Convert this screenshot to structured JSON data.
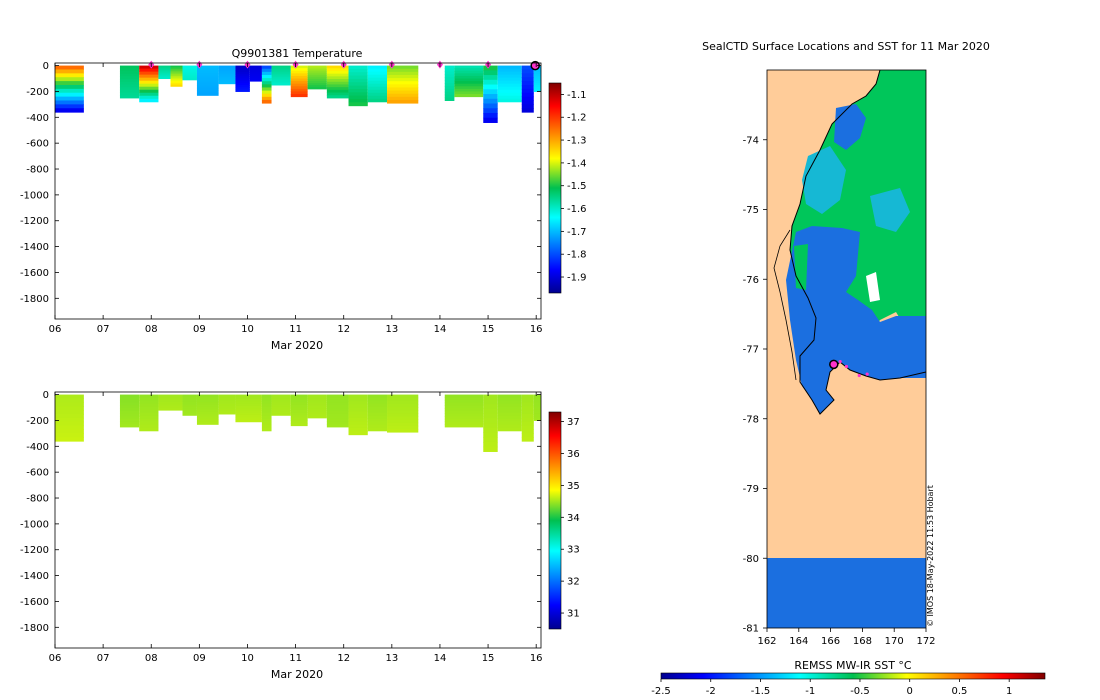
{
  "figure": {
    "background": "#ffffff"
  },
  "chart_data": [
    {
      "type": "heatmap",
      "title": "Q9901381  Temperature",
      "xlabel": "Mar 2020",
      "ylabel": "",
      "x_ticks": [
        6,
        7,
        8,
        9,
        10,
        11,
        12,
        13,
        14,
        15,
        16
      ],
      "x_tick_labels": [
        "06",
        "07",
        "08",
        "09",
        "10",
        "11",
        "12",
        "13",
        "14",
        "15",
        "16"
      ],
      "xlim": [
        6,
        16.1
      ],
      "y_ticks": [
        0,
        -200,
        -400,
        -600,
        -800,
        -1000,
        -1200,
        -1400,
        -1600,
        -1800
      ],
      "y_tick_labels": [
        "0",
        "-200",
        "-400",
        "-600",
        "-800",
        "-1000",
        "-1200",
        "-1400",
        "-1600",
        "-1800"
      ],
      "ylim": [
        -1960,
        20
      ],
      "colorbar": {
        "ticks": [
          -1.1,
          -1.2,
          -1.3,
          -1.4,
          -1.5,
          -1.6,
          -1.7,
          -1.8,
          -1.9
        ],
        "tick_labels": [
          "-1.1",
          "-1.2",
          "-1.3",
          "-1.4",
          "-1.5",
          "-1.6",
          "-1.7",
          "-1.8",
          "-1.9"
        ],
        "range": [
          -1.97,
          -1.05
        ],
        "colormap": "jet"
      },
      "day_markers": [
        8,
        9,
        10,
        11,
        12,
        13,
        14,
        15
      ],
      "current_position": {
        "day": 15.98,
        "depth": 0
      },
      "profiles": [
        {
          "x0": 6.0,
          "x1": 6.6,
          "depth": 360,
          "top": -1.25,
          "bottom": -1.88
        },
        {
          "x0": 7.35,
          "x1": 7.75,
          "depth": 250,
          "top": -1.52,
          "bottom": -1.56
        },
        {
          "x0": 7.75,
          "x1": 8.15,
          "depth": 280,
          "top": -1.12,
          "bottom": -1.65
        },
        {
          "x0": 8.15,
          "x1": 8.4,
          "depth": 100,
          "top": -1.55,
          "bottom": -1.6
        },
        {
          "x0": 8.4,
          "x1": 8.65,
          "depth": 160,
          "top": -1.5,
          "bottom": -1.35
        },
        {
          "x0": 8.65,
          "x1": 8.95,
          "depth": 110,
          "top": -1.62,
          "bottom": -1.6
        },
        {
          "x0": 8.95,
          "x1": 9.4,
          "depth": 230,
          "top": -1.7,
          "bottom": -1.72
        },
        {
          "x0": 9.4,
          "x1": 9.75,
          "depth": 140,
          "top": -1.72,
          "bottom": -1.7
        },
        {
          "x0": 9.75,
          "x1": 10.05,
          "depth": 200,
          "top": -1.92,
          "bottom": -1.85
        },
        {
          "x0": 10.05,
          "x1": 10.3,
          "depth": 120,
          "top": -1.9,
          "bottom": -1.88
        },
        {
          "x0": 10.3,
          "x1": 10.5,
          "depth": 290,
          "top": -1.8,
          "bottom": -1.25
        },
        {
          "x0": 10.5,
          "x1": 10.9,
          "depth": 150,
          "top": -1.55,
          "bottom": -1.6
        },
        {
          "x0": 10.9,
          "x1": 11.25,
          "depth": 240,
          "top": -1.4,
          "bottom": -1.2
        },
        {
          "x0": 11.25,
          "x1": 11.65,
          "depth": 180,
          "top": -1.42,
          "bottom": -1.5
        },
        {
          "x0": 11.65,
          "x1": 12.1,
          "depth": 250,
          "top": -1.35,
          "bottom": -1.55
        },
        {
          "x0": 12.1,
          "x1": 12.5,
          "depth": 310,
          "top": -1.6,
          "bottom": -1.5
        },
        {
          "x0": 12.5,
          "x1": 12.9,
          "depth": 280,
          "top": -1.65,
          "bottom": -1.55
        },
        {
          "x0": 12.9,
          "x1": 13.55,
          "depth": 290,
          "top": -1.45,
          "bottom": -1.3
        },
        {
          "x0": 14.1,
          "x1": 14.3,
          "depth": 270,
          "top": -1.6,
          "bottom": -1.55
        },
        {
          "x0": 14.3,
          "x1": 14.9,
          "depth": 240,
          "top": -1.58,
          "bottom": -1.45
        },
        {
          "x0": 14.9,
          "x1": 15.2,
          "depth": 440,
          "top": -1.5,
          "bottom": -1.88
        },
        {
          "x0": 15.2,
          "x1": 15.7,
          "depth": 280,
          "top": -1.7,
          "bottom": -1.62
        },
        {
          "x0": 15.7,
          "x1": 15.95,
          "depth": 360,
          "top": -1.8,
          "bottom": -1.9
        },
        {
          "x0": 15.95,
          "x1": 16.1,
          "depth": 200,
          "top": -1.7,
          "bottom": -1.65
        }
      ]
    },
    {
      "type": "heatmap",
      "title": "",
      "xlabel": "Mar 2020",
      "ylabel": "",
      "x_ticks": [
        6,
        7,
        8,
        9,
        10,
        11,
        12,
        13,
        14,
        15,
        16
      ],
      "x_tick_labels": [
        "06",
        "07",
        "08",
        "09",
        "10",
        "11",
        "12",
        "13",
        "14",
        "15",
        "16"
      ],
      "xlim": [
        6,
        16.1
      ],
      "y_ticks": [
        0,
        -200,
        -400,
        -600,
        -800,
        -1000,
        -1200,
        -1400,
        -1600,
        -1800
      ],
      "y_tick_labels": [
        "0",
        "-200",
        "-400",
        "-600",
        "-800",
        "-1000",
        "-1200",
        "-1400",
        "-1600",
        "-1800"
      ],
      "ylim": [
        -1960,
        20
      ],
      "colorbar": {
        "ticks": [
          37,
          36,
          35,
          34,
          33,
          32,
          31
        ],
        "tick_labels": [
          "37",
          "36",
          "35",
          "34",
          "33",
          "32",
          "31"
        ],
        "range": [
          30.5,
          37.3
        ],
        "colormap": "jet"
      },
      "profiles": [
        {
          "x0": 6.0,
          "x1": 6.6,
          "depth": 360,
          "top": 34.55,
          "bottom": 34.65
        },
        {
          "x0": 7.35,
          "x1": 7.75,
          "depth": 250,
          "top": 34.4,
          "bottom": 34.5
        },
        {
          "x0": 7.75,
          "x1": 8.15,
          "depth": 280,
          "top": 34.45,
          "bottom": 34.55
        },
        {
          "x0": 8.15,
          "x1": 8.65,
          "depth": 120,
          "top": 34.5,
          "bottom": 34.55
        },
        {
          "x0": 8.65,
          "x1": 8.95,
          "depth": 160,
          "top": 34.45,
          "bottom": 34.5
        },
        {
          "x0": 8.95,
          "x1": 9.4,
          "depth": 230,
          "top": 34.45,
          "bottom": 34.55
        },
        {
          "x0": 9.4,
          "x1": 9.75,
          "depth": 150,
          "top": 34.5,
          "bottom": 34.55
        },
        {
          "x0": 9.75,
          "x1": 10.3,
          "depth": 210,
          "top": 34.5,
          "bottom": 34.6
        },
        {
          "x0": 10.3,
          "x1": 10.5,
          "depth": 280,
          "top": 34.45,
          "bottom": 34.55
        },
        {
          "x0": 10.5,
          "x1": 10.9,
          "depth": 160,
          "top": 34.5,
          "bottom": 34.55
        },
        {
          "x0": 10.9,
          "x1": 11.25,
          "depth": 240,
          "top": 34.45,
          "bottom": 34.55
        },
        {
          "x0": 11.25,
          "x1": 11.65,
          "depth": 180,
          "top": 34.5,
          "bottom": 34.55
        },
        {
          "x0": 11.65,
          "x1": 12.1,
          "depth": 250,
          "top": 34.45,
          "bottom": 34.5
        },
        {
          "x0": 12.1,
          "x1": 12.5,
          "depth": 310,
          "top": 34.5,
          "bottom": 34.6
        },
        {
          "x0": 12.5,
          "x1": 12.9,
          "depth": 280,
          "top": 34.45,
          "bottom": 34.55
        },
        {
          "x0": 12.9,
          "x1": 13.55,
          "depth": 290,
          "top": 34.5,
          "bottom": 34.6
        },
        {
          "x0": 14.1,
          "x1": 14.9,
          "depth": 250,
          "top": 34.45,
          "bottom": 34.55
        },
        {
          "x0": 14.9,
          "x1": 15.2,
          "depth": 440,
          "top": 34.5,
          "bottom": 34.6
        },
        {
          "x0": 15.2,
          "x1": 15.7,
          "depth": 280,
          "top": 34.45,
          "bottom": 34.55
        },
        {
          "x0": 15.7,
          "x1": 15.95,
          "depth": 360,
          "top": 34.5,
          "bottom": 34.6
        },
        {
          "x0": 15.95,
          "x1": 16.1,
          "depth": 200,
          "top": 34.45,
          "bottom": 34.5
        }
      ]
    },
    {
      "type": "heatmap",
      "title": "SealCTD Surface Locations and SST for 11 Mar 2020",
      "xlabel": "",
      "ylabel": "",
      "x_ticks": [
        162,
        164,
        166,
        168,
        170,
        172
      ],
      "x_tick_labels": [
        "162",
        "164",
        "166",
        "168",
        "170",
        "172"
      ],
      "xlim": [
        162,
        172
      ],
      "y_ticks": [
        -74,
        -75,
        -76,
        -77,
        -78,
        -79,
        -80,
        -81
      ],
      "y_tick_labels": [
        "-74",
        "-75",
        "-76",
        "-77",
        "-78",
        "-79",
        "-80",
        "-81"
      ],
      "ylim": [
        -81,
        -73
      ],
      "land_color": "#ffcc99",
      "colorbar": {
        "label": "REMSS MW-IR SST °C",
        "ticks": [
          -2.5,
          -2,
          -1.5,
          -1,
          -0.5,
          0,
          0.5,
          1
        ],
        "tick_labels": [
          "-2.5",
          "-2",
          "-1.5",
          "-1",
          "-0.5",
          "0",
          "0.5",
          "1"
        ],
        "range": [
          -2.5,
          1.36
        ],
        "colormap": "jet"
      },
      "sst_regions": [
        {
          "name": "green shelf water",
          "sst": -0.8,
          "lon": [
            165.8,
            171.8
          ],
          "lat": [
            -76.7,
            -73.3
          ]
        },
        {
          "name": "cold coastal water",
          "sst": -1.8,
          "lon": [
            163.5,
            172
          ],
          "lat": [
            -77.8,
            -75.3
          ]
        },
        {
          "name": "ice shelf band",
          "sst": -1.8,
          "lon": [
            162,
            172
          ],
          "lat": [
            -81,
            -80
          ]
        }
      ],
      "seal_locations": [
        {
          "lon": 166.2,
          "lat": -77.22
        },
        {
          "lon": 166.6,
          "lat": -77.18
        },
        {
          "lon": 167.0,
          "lat": -77.25
        },
        {
          "lon": 167.8,
          "lat": -77.38
        },
        {
          "lon": 168.3,
          "lat": -77.36
        }
      ],
      "current_position": {
        "lon": 166.2,
        "lat": -77.22
      }
    }
  ],
  "credit": "© IMOS 18-May-2022 11:53 Hobart"
}
